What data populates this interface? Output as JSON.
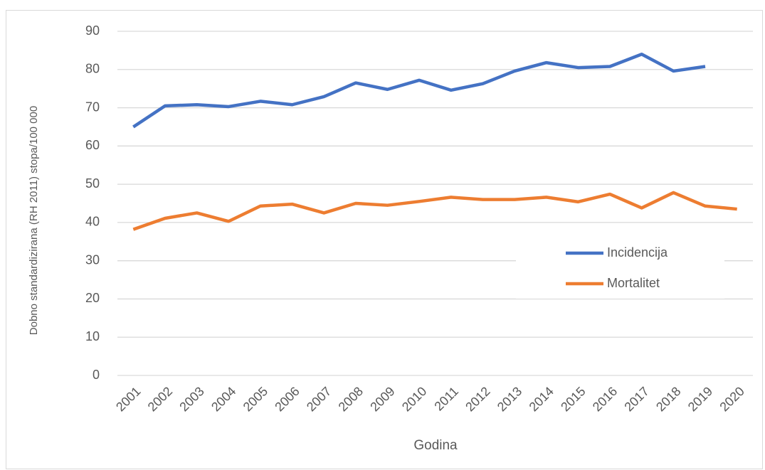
{
  "chart_data": {
    "type": "line",
    "x_label": "Godina",
    "y_label": "Dobno standardizirana (RH 2011) stopa/100 000",
    "categories": [
      "2001",
      "2002",
      "2003",
      "2004",
      "2005",
      "2006",
      "2007",
      "2008",
      "2009",
      "2010",
      "2011",
      "2012",
      "2013",
      "2014",
      "2015",
      "2016",
      "2017",
      "2018",
      "2019",
      "2020"
    ],
    "series": [
      {
        "name": "Incidencija",
        "color": "#4472c4",
        "values": [
          65,
          70.5,
          70.8,
          70.3,
          71.7,
          70.8,
          72.9,
          76.5,
          74.8,
          77.2,
          74.6,
          76.3,
          79.6,
          81.8,
          80.5,
          80.8,
          84,
          79.6,
          80.8,
          null
        ]
      },
      {
        "name": "Mortalitet",
        "color": "#ed7d31",
        "values": [
          38.2,
          41.1,
          42.5,
          40.3,
          44.3,
          44.8,
          42.5,
          45,
          44.5,
          45.5,
          46.6,
          46,
          46,
          46.6,
          45.4,
          47.4,
          43.8,
          47.8,
          44.3,
          43.5
        ]
      }
    ],
    "ylim": [
      0,
      90
    ],
    "yticks": [
      0,
      10,
      20,
      30,
      40,
      50,
      60,
      70,
      80,
      90
    ],
    "grid": true,
    "legend": "right"
  }
}
